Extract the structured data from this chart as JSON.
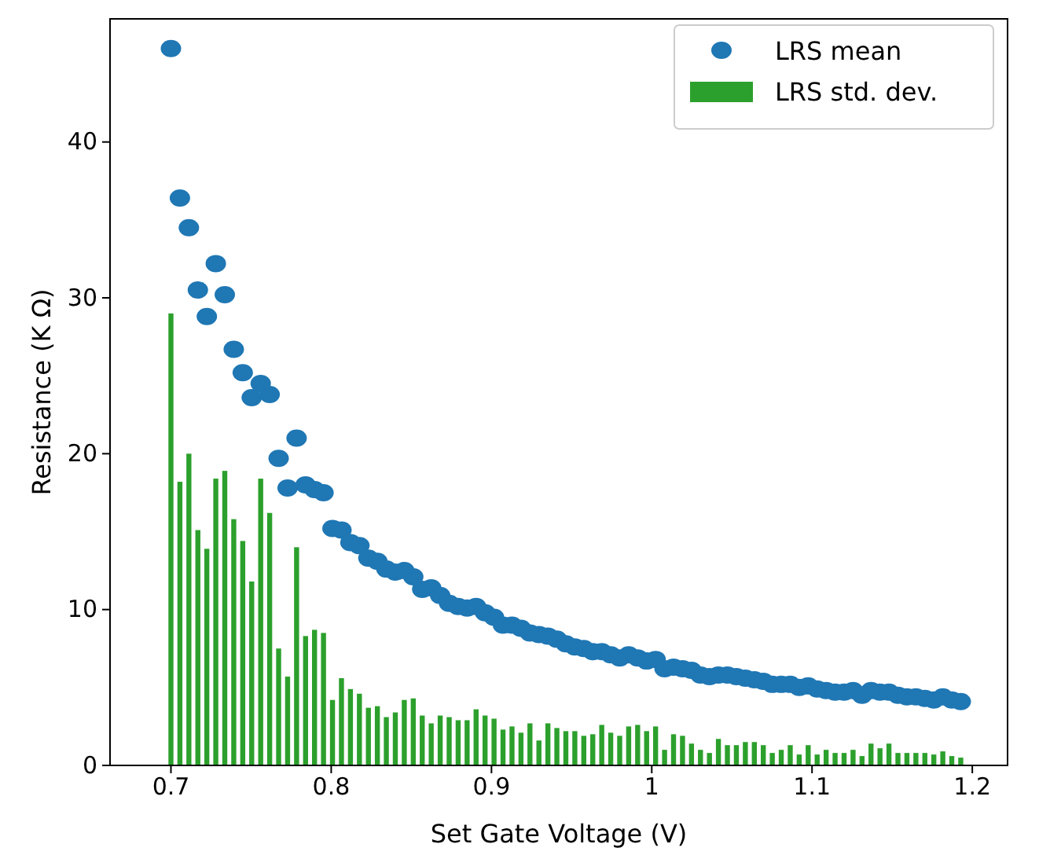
{
  "chart_data": {
    "type": "scatter",
    "xlabel": "Set Gate Voltage (V)",
    "ylabel": "Resistance (K Ω)",
    "x": [
      0.7,
      0.7056,
      0.7112,
      0.7168,
      0.7224,
      0.728,
      0.7336,
      0.7392,
      0.7448,
      0.7504,
      0.756,
      0.7616,
      0.7672,
      0.7728,
      0.7784,
      0.784,
      0.7896,
      0.7952,
      0.8008,
      0.8064,
      0.812,
      0.8176,
      0.8232,
      0.8288,
      0.8344,
      0.84,
      0.8456,
      0.8512,
      0.8568,
      0.8624,
      0.868,
      0.8736,
      0.8792,
      0.8848,
      0.8904,
      0.896,
      0.9016,
      0.9072,
      0.9128,
      0.9184,
      0.924,
      0.9296,
      0.9352,
      0.9408,
      0.9464,
      0.952,
      0.9576,
      0.9632,
      0.9688,
      0.9744,
      0.98,
      0.9856,
      0.9912,
      0.9968,
      1.0024,
      1.008,
      1.0136,
      1.0192,
      1.0248,
      1.0304,
      1.036,
      1.0416,
      1.0472,
      1.0528,
      1.0584,
      1.064,
      1.0696,
      1.0752,
      1.0808,
      1.0864,
      1.092,
      1.0976,
      1.1032,
      1.1088,
      1.1144,
      1.12,
      1.1256,
      1.1312,
      1.1368,
      1.1424,
      1.148,
      1.1536,
      1.1592,
      1.1648,
      1.1704,
      1.176,
      1.1816,
      1.1872,
      1.1928
    ],
    "series": [
      {
        "name": "LRS mean",
        "color": "#1f77b4",
        "values": [
          46.0,
          36.4,
          34.5,
          30.5,
          28.8,
          32.2,
          30.2,
          26.7,
          25.2,
          23.6,
          24.5,
          23.8,
          19.7,
          17.8,
          21.0,
          18.0,
          17.7,
          17.5,
          15.2,
          15.1,
          14.3,
          14.1,
          13.3,
          13.1,
          12.6,
          12.4,
          12.5,
          12.1,
          11.3,
          11.4,
          10.9,
          10.4,
          10.2,
          10.1,
          10.2,
          9.8,
          9.5,
          9.0,
          9.0,
          8.8,
          8.5,
          8.4,
          8.3,
          8.1,
          7.8,
          7.6,
          7.5,
          7.3,
          7.3,
          7.1,
          6.9,
          7.1,
          6.9,
          6.7,
          6.8,
          6.2,
          6.3,
          6.2,
          6.1,
          5.8,
          5.7,
          5.8,
          5.8,
          5.7,
          5.6,
          5.5,
          5.4,
          5.2,
          5.2,
          5.2,
          5.0,
          5.1,
          4.9,
          4.8,
          4.7,
          4.7,
          4.8,
          4.5,
          4.8,
          4.7,
          4.7,
          4.5,
          4.4,
          4.4,
          4.3,
          4.2,
          4.4,
          4.2,
          4.1
        ]
      },
      {
        "name": "LRS std. dev.",
        "type": "bar",
        "color": "#2ca02c",
        "values": [
          29.0,
          18.2,
          20.0,
          15.1,
          13.9,
          18.4,
          18.9,
          15.8,
          14.4,
          11.8,
          18.4,
          16.2,
          7.5,
          5.7,
          14.0,
          8.3,
          8.7,
          8.5,
          4.2,
          5.6,
          4.9,
          4.6,
          3.7,
          3.8,
          3.1,
          3.4,
          4.2,
          4.3,
          3.2,
          2.7,
          3.2,
          3.1,
          2.9,
          2.9,
          3.6,
          3.2,
          3.0,
          2.3,
          2.5,
          2.1,
          2.7,
          1.6,
          2.7,
          2.4,
          2.2,
          2.2,
          1.9,
          2.0,
          2.6,
          2.1,
          1.9,
          2.5,
          2.6,
          2.2,
          2.5,
          1.0,
          2.0,
          1.9,
          1.4,
          1.0,
          0.8,
          1.7,
          1.3,
          1.3,
          1.5,
          1.5,
          1.3,
          0.8,
          1.0,
          1.3,
          0.7,
          1.3,
          0.7,
          1.0,
          0.8,
          0.8,
          1.0,
          0.6,
          1.4,
          1.1,
          1.4,
          0.8,
          0.8,
          0.8,
          0.8,
          0.7,
          0.9,
          0.6,
          0.5
        ]
      }
    ],
    "xlim": [
      0.662,
      1.222
    ],
    "ylim": [
      0,
      47.9
    ],
    "xticks": [
      0.7,
      0.8,
      0.9,
      1.0,
      1.1,
      1.2
    ],
    "yticks": [
      0,
      10,
      20,
      30,
      40
    ],
    "marker": "circle",
    "legend": "top right",
    "grid": false
  }
}
